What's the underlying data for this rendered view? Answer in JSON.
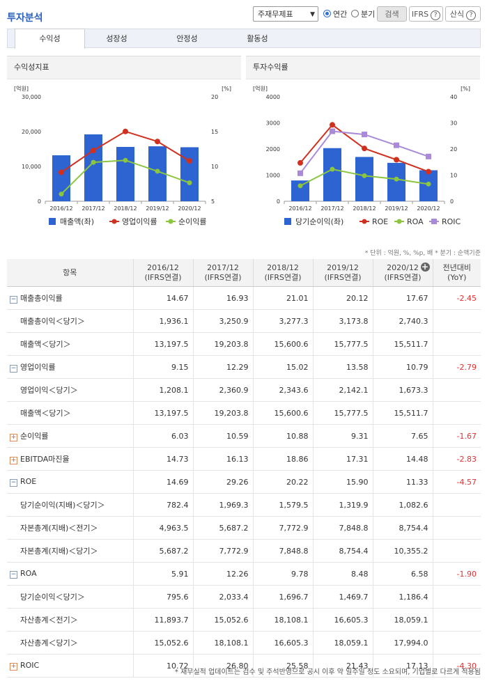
{
  "header": {
    "title": "투자분석",
    "select_value": "주재무제표",
    "radio_annual": "연간",
    "radio_quarter": "분기",
    "search_button": "검색",
    "ifrs_button": "IFRS",
    "formula_button": "산식",
    "help_glyph": "?"
  },
  "tabs": [
    "수익성",
    "성장성",
    "안정성",
    "활동성"
  ],
  "chart_left": {
    "title": "수익성지표",
    "y_left_unit": "[억원]",
    "y_right_unit": "[%]",
    "y_left_ticks": [
      "30,000",
      "20,000",
      "10,000",
      "0"
    ],
    "y_right_ticks": [
      "20",
      "15",
      "10",
      "5"
    ],
    "legend": [
      "매출액(좌)",
      "영업이익률",
      "순이익률"
    ]
  },
  "chart_right": {
    "title": "투자수익률",
    "y_left_unit": "[억원]",
    "y_right_unit": "[%]",
    "y_left_ticks": [
      "4000",
      "3000",
      "2000",
      "1000",
      "0"
    ],
    "y_right_ticks": [
      "40",
      "30",
      "20",
      "10",
      "0"
    ],
    "legend": [
      "당기순이익(좌)",
      "ROE",
      "ROA",
      "ROIC"
    ]
  },
  "chart_data": [
    {
      "type": "bar+line",
      "title": "수익성지표",
      "categories": [
        "2016/12",
        "2017/12",
        "2018/12",
        "2019/12",
        "2020/12"
      ],
      "bars": {
        "name": "매출액(좌)",
        "values": [
          13197.5,
          19203.8,
          15600.6,
          15777.5,
          15511.7
        ],
        "color": "#2e64d2",
        "ylim": [
          0,
          30000
        ]
      },
      "lines": [
        {
          "name": "영업이익률",
          "values": [
            9.15,
            12.29,
            15.02,
            13.58,
            10.79
          ],
          "color": "#d0301e"
        },
        {
          "name": "순이익률",
          "values": [
            6.03,
            10.59,
            10.88,
            9.31,
            7.65
          ],
          "color": "#8cc63f"
        }
      ],
      "y2lim": [
        5,
        20
      ]
    },
    {
      "type": "bar+line",
      "title": "투자수익률",
      "categories": [
        "2016/12",
        "2017/12",
        "2018/12",
        "2019/12",
        "2020/12"
      ],
      "bars": {
        "name": "당기순이익(좌)",
        "values": [
          795.6,
          2033.4,
          1696.7,
          1469.7,
          1186.4
        ],
        "color": "#2e64d2",
        "ylim": [
          0,
          4000
        ]
      },
      "lines": [
        {
          "name": "ROE",
          "values": [
            14.69,
            29.26,
            20.22,
            15.9,
            11.33
          ],
          "color": "#d0301e"
        },
        {
          "name": "ROA",
          "values": [
            5.91,
            12.26,
            9.78,
            8.48,
            6.58
          ],
          "color": "#8cc63f"
        },
        {
          "name": "ROIC",
          "values": [
            10.72,
            26.8,
            25.58,
            21.43,
            17.13
          ],
          "color": "#a98ad8"
        }
      ],
      "y2lim": [
        0,
        40
      ]
    }
  ],
  "unit_note": "* 단위 : 억원, %, %p, 배   * 분기 : 순액기준",
  "table": {
    "header_item": "항목",
    "columns": [
      {
        "period": "2016/12",
        "basis": "(IFRS연결)"
      },
      {
        "period": "2017/12",
        "basis": "(IFRS연결)"
      },
      {
        "period": "2018/12",
        "basis": "(IFRS연결)"
      },
      {
        "period": "2019/12",
        "basis": "(IFRS연결)"
      },
      {
        "period": "2020/12",
        "basis": "(IFRS연결)"
      }
    ],
    "yoy_header": "전년대비",
    "yoy_sub": "(YoY)",
    "plus_glyph": "+",
    "rows": [
      {
        "label": "매출총이익률",
        "type": "minus",
        "values": [
          "14.67",
          "16.93",
          "21.01",
          "20.12",
          "17.67"
        ],
        "yoy": "-2.45"
      },
      {
        "label": "매출총이익＜당기＞",
        "type": "sub",
        "values": [
          "1,936.1",
          "3,250.9",
          "3,277.3",
          "3,173.8",
          "2,740.3"
        ],
        "yoy": ""
      },
      {
        "label": "매출액＜당기＞",
        "type": "sub",
        "values": [
          "13,197.5",
          "19,203.8",
          "15,600.6",
          "15,777.5",
          "15,511.7"
        ],
        "yoy": ""
      },
      {
        "label": "영업이익률",
        "type": "minus",
        "values": [
          "9.15",
          "12.29",
          "15.02",
          "13.58",
          "10.79"
        ],
        "yoy": "-2.79"
      },
      {
        "label": "영업이익＜당기＞",
        "type": "sub",
        "values": [
          "1,208.1",
          "2,360.9",
          "2,343.6",
          "2,142.1",
          "1,673.3"
        ],
        "yoy": ""
      },
      {
        "label": "매출액＜당기＞",
        "type": "sub",
        "values": [
          "13,197.5",
          "19,203.8",
          "15,600.6",
          "15,777.5",
          "15,511.7"
        ],
        "yoy": ""
      },
      {
        "label": "순이익률",
        "type": "plus",
        "values": [
          "6.03",
          "10.59",
          "10.88",
          "9.31",
          "7.65"
        ],
        "yoy": "-1.67"
      },
      {
        "label": "EBITDA마진율",
        "type": "plus",
        "values": [
          "14.73",
          "16.13",
          "18.86",
          "17.31",
          "14.48"
        ],
        "yoy": "-2.83"
      },
      {
        "label": "ROE",
        "type": "minus",
        "values": [
          "14.69",
          "29.26",
          "20.22",
          "15.90",
          "11.33"
        ],
        "yoy": "-4.57"
      },
      {
        "label": "당기순이익(지배)＜당기＞",
        "type": "sub",
        "values": [
          "782.4",
          "1,969.3",
          "1,579.5",
          "1,319.9",
          "1,082.6"
        ],
        "yoy": ""
      },
      {
        "label": "자본총계(지배)＜전기＞",
        "type": "sub",
        "values": [
          "4,963.5",
          "5,687.2",
          "7,772.9",
          "7,848.8",
          "8,754.4"
        ],
        "yoy": ""
      },
      {
        "label": "자본총계(지배)＜당기＞",
        "type": "sub",
        "values": [
          "5,687.2",
          "7,772.9",
          "7,848.8",
          "8,754.4",
          "10,355.2"
        ],
        "yoy": ""
      },
      {
        "label": "ROA",
        "type": "minus",
        "values": [
          "5.91",
          "12.26",
          "9.78",
          "8.48",
          "6.58"
        ],
        "yoy": "-1.90"
      },
      {
        "label": "당기순이익＜당기＞",
        "type": "sub",
        "values": [
          "795.6",
          "2,033.4",
          "1,696.7",
          "1,469.7",
          "1,186.4"
        ],
        "yoy": ""
      },
      {
        "label": "자산총계＜전기＞",
        "type": "sub",
        "values": [
          "11,893.7",
          "15,052.6",
          "18,108.1",
          "16,605.3",
          "18,059.1"
        ],
        "yoy": ""
      },
      {
        "label": "자산총계＜당기＞",
        "type": "sub",
        "values": [
          "15,052.6",
          "18,108.1",
          "16,605.3",
          "18,059.1",
          "17,994.0"
        ],
        "yoy": ""
      },
      {
        "label": "ROIC",
        "type": "plus",
        "values": [
          "10.72",
          "26.80",
          "25.58",
          "21.43",
          "17.13"
        ],
        "yoy": "-4.30"
      }
    ]
  },
  "footer_note": "* 재무실적 업데이트는 검수 및 주석반영으로 공시 이후 약 일주일 정도 소요되며, 기업별로 다르게 적용됨"
}
